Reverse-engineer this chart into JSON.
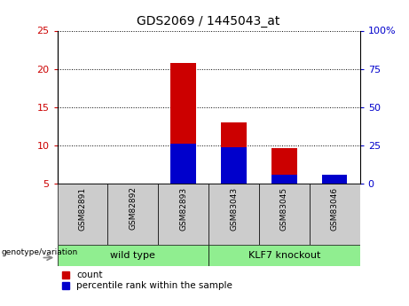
{
  "title": "GDS2069 / 1445043_at",
  "samples": [
    "GSM82891",
    "GSM82892",
    "GSM82893",
    "GSM83043",
    "GSM83045",
    "GSM83046"
  ],
  "count_values": [
    5.0,
    5.0,
    20.8,
    13.0,
    9.6,
    5.2
  ],
  "percentile_values": [
    0,
    0,
    26,
    24,
    6,
    6
  ],
  "baseline": 5.0,
  "ylim_left": [
    5,
    25
  ],
  "ylim_right": [
    0,
    100
  ],
  "yticks_left": [
    5,
    10,
    15,
    20,
    25
  ],
  "yticks_right": [
    0,
    25,
    50,
    75,
    100
  ],
  "ytick_labels_left": [
    "5",
    "10",
    "15",
    "20",
    "25"
  ],
  "ytick_labels_right": [
    "0",
    "25",
    "50",
    "75",
    "100%"
  ],
  "bar_color_red": "#cc0000",
  "bar_color_blue": "#0000cc",
  "bar_width": 0.5,
  "group_label": "genotype/variation",
  "legend_count": "count",
  "legend_percentile": "percentile rank within the sample",
  "tick_color_left": "#cc0000",
  "tick_color_right": "#0000cc",
  "group_bg_color": "#90ee90",
  "label_bg_color": "#cccccc",
  "wild_type_label": "wild type",
  "klf7_label": "KLF7 knockout"
}
